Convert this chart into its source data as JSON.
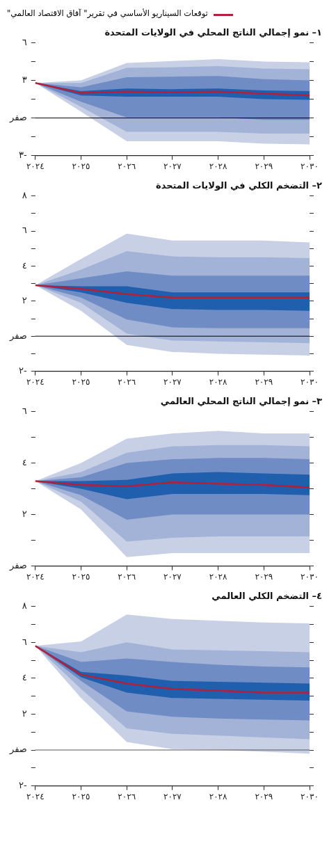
{
  "chart_data": [
    {
      "type": "line",
      "title": "١– نمو إجمالي الناتج المحلي في الولايات المتحدة",
      "legend": "top",
      "categories": [
        "٢٠٢٤",
        "٢٠٢٥",
        "٢٠٢٦",
        "٢٠٢٧",
        "٢٠٢٨",
        "٢٠٢٩",
        "٢٠٣٠"
      ],
      "ylim": [
        -3,
        6
      ],
      "yticks": [
        {
          "value": -3,
          "label": "٣-"
        },
        {
          "value": -1.5,
          "label": null
        },
        {
          "value": 0,
          "label": "صفر"
        },
        {
          "value": 1.5,
          "label": null
        },
        {
          "value": 3,
          "label": "٣"
        },
        {
          "value": 4.5,
          "label": null
        },
        {
          "value": 6,
          "label": "٦"
        }
      ],
      "ref_lines": [
        {
          "axis": "y",
          "value": 0,
          "color": "#000000"
        }
      ],
      "series": [
        {
          "type": "area",
          "color": "#c8d0e6",
          "values": [
            null,
            null,
            null,
            null,
            null,
            null,
            null
          ],
          "upper": [
            2.8,
            3.0,
            4.4,
            4.55,
            4.7,
            4.5,
            4.45
          ],
          "lower": [
            2.8,
            0.5,
            -1.85,
            -1.85,
            -1.85,
            -2.05,
            -2.1
          ]
        },
        {
          "type": "area",
          "color": "#a3b3d8",
          "values": [
            null,
            null,
            null,
            null,
            null,
            null,
            null
          ],
          "upper": [
            2.8,
            2.8,
            4.0,
            4.05,
            4.15,
            3.95,
            3.9
          ],
          "lower": [
            2.8,
            0.9,
            -1.1,
            -1.1,
            -1.1,
            -1.25,
            -1.25
          ]
        },
        {
          "type": "area",
          "color": "#6f8cc4",
          "values": [
            null,
            null,
            null,
            null,
            null,
            null,
            null
          ],
          "upper": [
            2.8,
            2.45,
            3.25,
            3.3,
            3.35,
            3.1,
            3.0
          ],
          "lower": [
            2.8,
            1.3,
            0.05,
            0.05,
            0.05,
            -0.15,
            -0.15
          ]
        },
        {
          "type": "area",
          "color": "#1f5fad",
          "values": [
            null,
            null,
            null,
            null,
            null,
            null,
            null
          ],
          "upper": [
            2.8,
            2.15,
            2.35,
            2.3,
            2.35,
            2.2,
            2.15
          ],
          "lower": [
            2.8,
            1.8,
            1.7,
            1.7,
            1.7,
            1.5,
            1.45
          ]
        },
        {
          "type": "line",
          "name": "توقعات السيناريو الأساسي في تقرير\" آفاق الاقتصاد العالمي\"",
          "color": "#b2203a",
          "values": [
            2.8,
            2.0,
            2.1,
            2.05,
            2.1,
            1.95,
            1.8
          ]
        }
      ]
    },
    {
      "type": "line",
      "title": "٢– التضخم الكلي في الولايات المتحدة",
      "categories": [
        "٢٠٢٤",
        "٢٠٢٥",
        "٢٠٢٦",
        "٢٠٢٧",
        "٢٠٢٨",
        "٢٠٢٩",
        "٢٠٣٠"
      ],
      "ylim": [
        -2,
        8
      ],
      "yticks": [
        {
          "value": -2,
          "label": "٢-"
        },
        {
          "value": -1,
          "label": null
        },
        {
          "value": 0,
          "label": "صفر"
        },
        {
          "value": 1,
          "label": null
        },
        {
          "value": 2,
          "label": "٢"
        },
        {
          "value": 3,
          "label": null
        },
        {
          "value": 4,
          "label": "٤"
        },
        {
          "value": 5,
          "label": null
        },
        {
          "value": 6,
          "label": "٦"
        },
        {
          "value": 7,
          "label": null
        },
        {
          "value": 8,
          "label": "٨"
        }
      ],
      "ref_lines": [
        {
          "axis": "y",
          "value": 0,
          "color": "#000000"
        }
      ],
      "series": [
        {
          "type": "area",
          "color": "#c8d0e6",
          "values": [
            null,
            null,
            null,
            null,
            null,
            null,
            null
          ],
          "upper": [
            2.9,
            4.4,
            5.85,
            5.45,
            5.45,
            5.45,
            5.35
          ],
          "lower": [
            2.9,
            1.45,
            -0.5,
            -0.9,
            -1.0,
            -1.05,
            -1.1
          ]
        },
        {
          "type": "area",
          "color": "#a3b3d8",
          "values": [
            null,
            null,
            null,
            null,
            null,
            null,
            null
          ],
          "upper": [
            2.9,
            3.8,
            4.85,
            4.55,
            4.5,
            4.5,
            4.45
          ],
          "lower": [
            2.9,
            1.9,
            0.15,
            -0.25,
            -0.3,
            -0.35,
            -0.4
          ]
        },
        {
          "type": "area",
          "color": "#6f8cc4",
          "values": [
            null,
            null,
            null,
            null,
            null,
            null,
            null
          ],
          "upper": [
            2.9,
            3.3,
            3.7,
            3.45,
            3.45,
            3.45,
            3.45
          ],
          "lower": [
            2.9,
            2.2,
            0.95,
            0.5,
            0.45,
            0.45,
            0.45
          ]
        },
        {
          "type": "area",
          "color": "#1f5fad",
          "values": [
            null,
            null,
            null,
            null,
            null,
            null,
            null
          ],
          "upper": [
            2.9,
            2.85,
            2.85,
            2.5,
            2.5,
            2.5,
            2.5
          ],
          "lower": [
            2.9,
            2.5,
            1.9,
            1.55,
            1.5,
            1.5,
            1.45
          ]
        },
        {
          "type": "line",
          "color": "#b2203a",
          "values": [
            2.9,
            2.7,
            2.4,
            2.2,
            2.2,
            2.2,
            2.2
          ]
        }
      ]
    },
    {
      "type": "line",
      "title": "٣– نمو إجمالي الناتج المحلي العالمي",
      "categories": [
        "٢٠٢٤",
        "٢٠٢٥",
        "٢٠٢٦",
        "٢٠٢٧",
        "٢٠٢٨",
        "٢٠٢٩",
        "٢٠٣٠"
      ],
      "ylim": [
        0,
        6
      ],
      "yticks": [
        {
          "value": 0,
          "label": "صفر"
        },
        {
          "value": 1,
          "label": null
        },
        {
          "value": 2,
          "label": "٢"
        },
        {
          "value": 3,
          "label": null
        },
        {
          "value": 4,
          "label": "٤"
        },
        {
          "value": 5,
          "label": null
        },
        {
          "value": 6,
          "label": "٦"
        }
      ],
      "series": [
        {
          "type": "area",
          "color": "#c8d0e6",
          "values": [
            null,
            null,
            null,
            null,
            null,
            null,
            null
          ],
          "upper": [
            3.3,
            4.0,
            4.95,
            5.15,
            5.25,
            5.15,
            5.15
          ],
          "lower": [
            3.3,
            2.2,
            0.35,
            0.5,
            0.5,
            0.5,
            0.5
          ]
        },
        {
          "type": "area",
          "color": "#a3b3d8",
          "values": [
            null,
            null,
            null,
            null,
            null,
            null,
            null
          ],
          "upper": [
            3.3,
            3.65,
            4.4,
            4.65,
            4.7,
            4.7,
            4.65
          ],
          "lower": [
            3.3,
            2.5,
            0.95,
            1.1,
            1.15,
            1.15,
            1.15
          ]
        },
        {
          "type": "area",
          "color": "#6f8cc4",
          "values": [
            null,
            null,
            null,
            null,
            null,
            null,
            null
          ],
          "upper": [
            3.3,
            3.45,
            4.0,
            4.15,
            4.2,
            4.2,
            4.15
          ],
          "lower": [
            3.3,
            2.75,
            1.8,
            2.0,
            2.0,
            2.0,
            2.0
          ]
        },
        {
          "type": "area",
          "color": "#1f5fad",
          "values": [
            null,
            null,
            null,
            null,
            null,
            null,
            null
          ],
          "upper": [
            3.3,
            3.3,
            3.35,
            3.6,
            3.65,
            3.6,
            3.55
          ],
          "lower": [
            3.3,
            3.0,
            2.6,
            2.8,
            2.8,
            2.8,
            2.75
          ]
        },
        {
          "type": "line",
          "color": "#b2203a",
          "values": [
            3.3,
            3.15,
            3.1,
            3.25,
            3.2,
            3.15,
            3.05
          ]
        }
      ]
    },
    {
      "type": "line",
      "title": "٤– التضخم الكلي العالمي",
      "categories": [
        "٢٠٢٤",
        "٢٠٢٥",
        "٢٠٢٦",
        "٢٠٢٧",
        "٢٠٢٨",
        "٢٠٢٩",
        "٢٠٣٠"
      ],
      "ylim": [
        -2,
        8
      ],
      "yticks": [
        {
          "value": -2,
          "label": "٢-"
        },
        {
          "value": -1,
          "label": null
        },
        {
          "value": 0,
          "label": "صفر"
        },
        {
          "value": 1,
          "label": null
        },
        {
          "value": 2,
          "label": "٢"
        },
        {
          "value": 3,
          "label": null
        },
        {
          "value": 4,
          "label": "٤"
        },
        {
          "value": 5,
          "label": null
        },
        {
          "value": 6,
          "label": "٦"
        },
        {
          "value": 7,
          "label": null
        },
        {
          "value": 8,
          "label": "٨"
        }
      ],
      "ref_lines": [
        {
          "axis": "y",
          "value": 0,
          "color": "#555555"
        }
      ],
      "series": [
        {
          "type": "area",
          "color": "#c8d0e6",
          "values": [
            null,
            null,
            null,
            null,
            null,
            null,
            null
          ],
          "upper": [
            5.8,
            6.05,
            7.55,
            7.3,
            7.2,
            7.1,
            7.05
          ],
          "lower": [
            5.8,
            2.9,
            0.45,
            0.05,
            0.0,
            -0.1,
            -0.2
          ]
        },
        {
          "type": "area",
          "color": "#a3b3d8",
          "values": [
            null,
            null,
            null,
            null,
            null,
            null,
            null
          ],
          "upper": [
            5.8,
            5.45,
            6.0,
            5.6,
            5.55,
            5.5,
            5.45
          ],
          "lower": [
            5.8,
            3.4,
            1.2,
            0.9,
            0.8,
            0.7,
            0.6
          ]
        },
        {
          "type": "area",
          "color": "#6f8cc4",
          "values": [
            null,
            null,
            null,
            null,
            null,
            null,
            null
          ],
          "upper": [
            5.8,
            4.9,
            5.1,
            4.9,
            4.75,
            4.65,
            4.6
          ],
          "lower": [
            5.8,
            3.85,
            2.15,
            1.85,
            1.75,
            1.7,
            1.65
          ]
        },
        {
          "type": "area",
          "color": "#1f5fad",
          "values": [
            null,
            null,
            null,
            null,
            null,
            null,
            null
          ],
          "upper": [
            5.8,
            4.35,
            4.15,
            3.85,
            3.8,
            3.75,
            3.7
          ],
          "lower": [
            5.8,
            4.05,
            3.2,
            2.9,
            2.85,
            2.8,
            2.75
          ]
        },
        {
          "type": "line",
          "color": "#b2203a",
          "values": [
            5.8,
            4.2,
            3.7,
            3.4,
            3.3,
            3.2,
            3.2
          ]
        }
      ]
    }
  ]
}
